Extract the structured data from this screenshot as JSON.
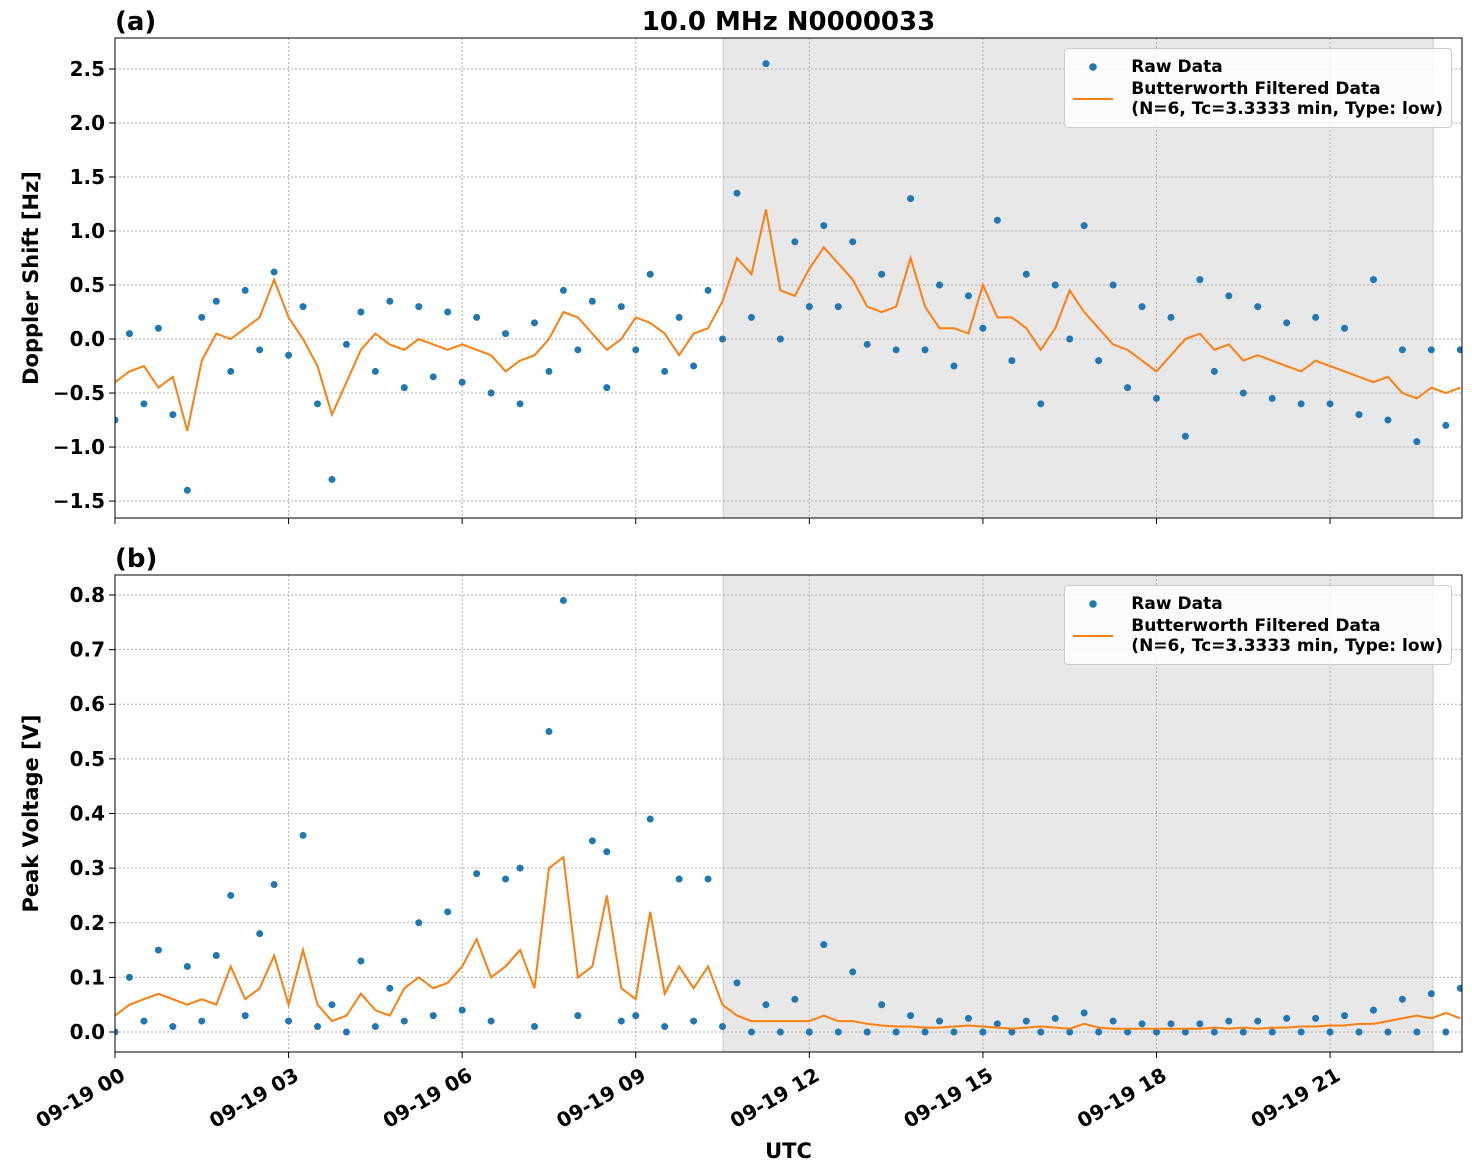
{
  "chart_data": [
    {
      "type": "line",
      "title": "10.0 MHz N0000033",
      "panel_label": "(a)",
      "ylabel": "Doppler Shift [Hz]",
      "xlim": [
        0,
        23.28
      ],
      "ylim": [
        -1.657,
        2.787
      ],
      "grid": true,
      "legend": "upper right",
      "shaded_span": [
        10.51,
        22.78
      ],
      "shade_color": "#e8e8e8",
      "xticks": [
        {
          "value": 0,
          "label": "09-19 00"
        },
        {
          "value": 3,
          "label": "09-19 03"
        },
        {
          "value": 6,
          "label": "09-19 06"
        },
        {
          "value": 9,
          "label": "09-19 09"
        },
        {
          "value": 12,
          "label": "09-19 12"
        },
        {
          "value": 15,
          "label": "09-19 15"
        },
        {
          "value": 18,
          "label": "09-19 18"
        },
        {
          "value": 21,
          "label": "09-19 21"
        }
      ],
      "show_xtick_labels": false,
      "yticks": [
        {
          "value": -1.5,
          "label": "−1.5"
        },
        {
          "value": -1,
          "label": "−1.0"
        },
        {
          "value": -0.5,
          "label": "−0.5"
        },
        {
          "value": 0,
          "label": "0.0"
        },
        0.5,
        {
          "value": 1,
          "label": "1.0"
        },
        1.5,
        {
          "value": 2,
          "label": "2.0"
        },
        2.5
      ],
      "x": [
        0,
        0.25,
        0.5,
        0.75,
        1,
        1.25,
        1.5,
        1.75,
        2,
        2.25,
        2.5,
        2.75,
        3,
        3.25,
        3.5,
        3.75,
        4,
        4.25,
        4.5,
        4.75,
        5,
        5.25,
        5.5,
        5.75,
        6,
        6.25,
        6.5,
        6.75,
        7,
        7.25,
        7.5,
        7.75,
        8,
        8.25,
        8.5,
        8.75,
        9,
        9.25,
        9.5,
        9.75,
        10,
        10.25,
        10.5,
        10.75,
        11,
        11.25,
        11.5,
        11.75,
        12,
        12.25,
        12.5,
        12.75,
        13,
        13.25,
        13.5,
        13.75,
        14,
        14.25,
        14.5,
        14.75,
        15,
        15.25,
        15.5,
        15.75,
        16,
        16.25,
        16.5,
        16.75,
        17,
        17.25,
        17.5,
        17.75,
        18,
        18.25,
        18.5,
        18.75,
        19,
        19.25,
        19.5,
        19.75,
        20,
        20.25,
        20.5,
        20.75,
        21,
        21.25,
        21.5,
        21.75,
        22,
        22.25,
        22.5,
        22.75,
        23,
        23.25
      ],
      "series": [
        {
          "name": "Raw Data",
          "color": "#1f77b4",
          "style": "marker",
          "values": [
            -0.75,
            0.05,
            -0.6,
            0.1,
            -0.7,
            -1.4,
            0.2,
            0.35,
            -0.3,
            0.45,
            -0.1,
            0.62,
            -0.15,
            0.3,
            -0.6,
            -1.3,
            -0.05,
            0.25,
            -0.3,
            0.35,
            -0.45,
            0.3,
            -0.35,
            0.25,
            -0.4,
            0.2,
            -0.5,
            0.05,
            -0.6,
            0.15,
            -0.3,
            0.45,
            -0.1,
            0.35,
            -0.45,
            0.3,
            -0.1,
            0.6,
            -0.3,
            0.2,
            -0.25,
            0.45,
            0.0,
            1.35,
            0.2,
            2.55,
            0.0,
            0.9,
            0.3,
            1.05,
            0.3,
            0.9,
            -0.05,
            0.6,
            -0.1,
            1.3,
            -0.1,
            0.5,
            -0.25,
            0.4,
            0.1,
            1.1,
            -0.2,
            0.6,
            -0.6,
            0.5,
            0.0,
            1.05,
            -0.2,
            0.5,
            -0.45,
            0.3,
            -0.55,
            0.2,
            -0.9,
            0.55,
            -0.3,
            0.4,
            -0.5,
            0.3,
            -0.55,
            0.15,
            -0.6,
            0.2,
            -0.6,
            0.1,
            -0.7,
            0.55,
            -0.75,
            -0.1,
            -0.95,
            -0.1,
            -0.8,
            -0.1
          ]
        },
        {
          "name": "Butterworth Filtered Data\n(N=6, Tc=3.3333 min, Type: low)",
          "color": "#ff7f0e",
          "style": "line",
          "values": [
            -0.4,
            -0.3,
            -0.25,
            -0.45,
            -0.35,
            -0.85,
            -0.2,
            0.05,
            0.0,
            0.1,
            0.2,
            0.55,
            0.2,
            0.0,
            -0.25,
            -0.7,
            -0.4,
            -0.1,
            0.05,
            -0.05,
            -0.1,
            0.0,
            -0.05,
            -0.1,
            -0.05,
            -0.1,
            -0.15,
            -0.3,
            -0.2,
            -0.15,
            0.0,
            0.25,
            0.2,
            0.05,
            -0.1,
            0.0,
            0.2,
            0.15,
            0.05,
            -0.15,
            0.05,
            0.1,
            0.35,
            0.75,
            0.6,
            1.2,
            0.45,
            0.4,
            0.65,
            0.85,
            0.7,
            0.55,
            0.3,
            0.25,
            0.3,
            0.75,
            0.3,
            0.1,
            0.1,
            0.05,
            0.5,
            0.2,
            0.2,
            0.1,
            -0.1,
            0.1,
            0.45,
            0.25,
            0.1,
            -0.05,
            -0.1,
            -0.2,
            -0.3,
            -0.15,
            0.0,
            0.05,
            -0.1,
            -0.05,
            -0.2,
            -0.15,
            -0.2,
            -0.25,
            -0.3,
            -0.2,
            -0.25,
            -0.3,
            -0.35,
            -0.4,
            -0.35,
            -0.5,
            -0.55,
            -0.45,
            -0.5,
            -0.45
          ]
        }
      ]
    },
    {
      "type": "line",
      "panel_label": "(b)",
      "ylabel": "Peak Voltage [V]",
      "xlabel": "UTC",
      "xlim": [
        0,
        23.28
      ],
      "ylim": [
        -0.0366,
        0.8366
      ],
      "grid": true,
      "legend": "upper right",
      "shaded_span": [
        10.51,
        22.78
      ],
      "shade_color": "#e8e8e8",
      "xticks": [
        {
          "value": 0,
          "label": "09-19 00"
        },
        {
          "value": 3,
          "label": "09-19 03"
        },
        {
          "value": 6,
          "label": "09-19 06"
        },
        {
          "value": 9,
          "label": "09-19 09"
        },
        {
          "value": 12,
          "label": "09-19 12"
        },
        {
          "value": 15,
          "label": "09-19 15"
        },
        {
          "value": 18,
          "label": "09-19 18"
        },
        {
          "value": 21,
          "label": "09-19 21"
        }
      ],
      "show_xtick_labels": true,
      "yticks": [
        {
          "value": 0,
          "label": "0.0"
        },
        0.1,
        0.2,
        0.3,
        0.4,
        0.5,
        0.6,
        0.7,
        0.8
      ],
      "x": [
        0,
        0.25,
        0.5,
        0.75,
        1,
        1.25,
        1.5,
        1.75,
        2,
        2.25,
        2.5,
        2.75,
        3,
        3.25,
        3.5,
        3.75,
        4,
        4.25,
        4.5,
        4.75,
        5,
        5.25,
        5.5,
        5.75,
        6,
        6.25,
        6.5,
        6.75,
        7,
        7.25,
        7.5,
        7.75,
        8,
        8.25,
        8.5,
        8.75,
        9,
        9.25,
        9.5,
        9.75,
        10,
        10.25,
        10.5,
        10.75,
        11,
        11.25,
        11.5,
        11.75,
        12,
        12.25,
        12.5,
        12.75,
        13,
        13.25,
        13.5,
        13.75,
        14,
        14.25,
        14.5,
        14.75,
        15,
        15.25,
        15.5,
        15.75,
        16,
        16.25,
        16.5,
        16.75,
        17,
        17.25,
        17.5,
        17.75,
        18,
        18.25,
        18.5,
        18.75,
        19,
        19.25,
        19.5,
        19.75,
        20,
        20.25,
        20.5,
        20.75,
        21,
        21.25,
        21.5,
        21.75,
        22,
        22.25,
        22.5,
        22.75,
        23,
        23.25
      ],
      "series": [
        {
          "name": "Raw Data",
          "color": "#1f77b4",
          "style": "marker",
          "values": [
            0.0,
            0.1,
            0.02,
            0.15,
            0.01,
            0.12,
            0.02,
            0.14,
            0.25,
            0.03,
            0.18,
            0.27,
            0.02,
            0.36,
            0.01,
            0.05,
            0.0,
            0.13,
            0.01,
            0.08,
            0.02,
            0.2,
            0.03,
            0.22,
            0.04,
            0.29,
            0.02,
            0.28,
            0.3,
            0.01,
            0.55,
            0.79,
            0.03,
            0.35,
            0.33,
            0.02,
            0.03,
            0.39,
            0.01,
            0.28,
            0.02,
            0.28,
            0.01,
            0.09,
            0.0,
            0.05,
            0.0,
            0.06,
            0.0,
            0.16,
            0.0,
            0.11,
            0.0,
            0.05,
            0.0,
            0.03,
            0.0,
            0.02,
            0.0,
            0.025,
            0.0,
            0.015,
            0.0,
            0.02,
            0.0,
            0.025,
            0.0,
            0.035,
            0.0,
            0.02,
            0.0,
            0.015,
            0.0,
            0.015,
            0.0,
            0.015,
            0.0,
            0.02,
            0.0,
            0.02,
            0.0,
            0.025,
            0.0,
            0.025,
            0.0,
            0.03,
            0.0,
            0.04,
            0.0,
            0.06,
            0.0,
            0.07,
            0.0,
            0.08
          ]
        },
        {
          "name": "Butterworth Filtered Data\n(N=6, Tc=3.3333 min, Type: low)",
          "color": "#ff7f0e",
          "style": "line",
          "values": [
            0.03,
            0.05,
            0.06,
            0.07,
            0.06,
            0.05,
            0.06,
            0.05,
            0.12,
            0.06,
            0.08,
            0.14,
            0.05,
            0.15,
            0.05,
            0.02,
            0.03,
            0.07,
            0.04,
            0.03,
            0.08,
            0.1,
            0.08,
            0.09,
            0.12,
            0.17,
            0.1,
            0.12,
            0.15,
            0.08,
            0.3,
            0.32,
            0.1,
            0.12,
            0.25,
            0.08,
            0.06,
            0.22,
            0.07,
            0.12,
            0.08,
            0.12,
            0.05,
            0.03,
            0.02,
            0.02,
            0.02,
            0.02,
            0.02,
            0.03,
            0.02,
            0.02,
            0.015,
            0.012,
            0.01,
            0.01,
            0.008,
            0.008,
            0.01,
            0.012,
            0.01,
            0.008,
            0.006,
            0.008,
            0.01,
            0.008,
            0.006,
            0.015,
            0.008,
            0.006,
            0.006,
            0.006,
            0.006,
            0.006,
            0.006,
            0.006,
            0.008,
            0.006,
            0.008,
            0.006,
            0.008,
            0.008,
            0.01,
            0.01,
            0.012,
            0.012,
            0.015,
            0.015,
            0.02,
            0.025,
            0.03,
            0.025,
            0.035,
            0.025
          ]
        }
      ]
    }
  ]
}
